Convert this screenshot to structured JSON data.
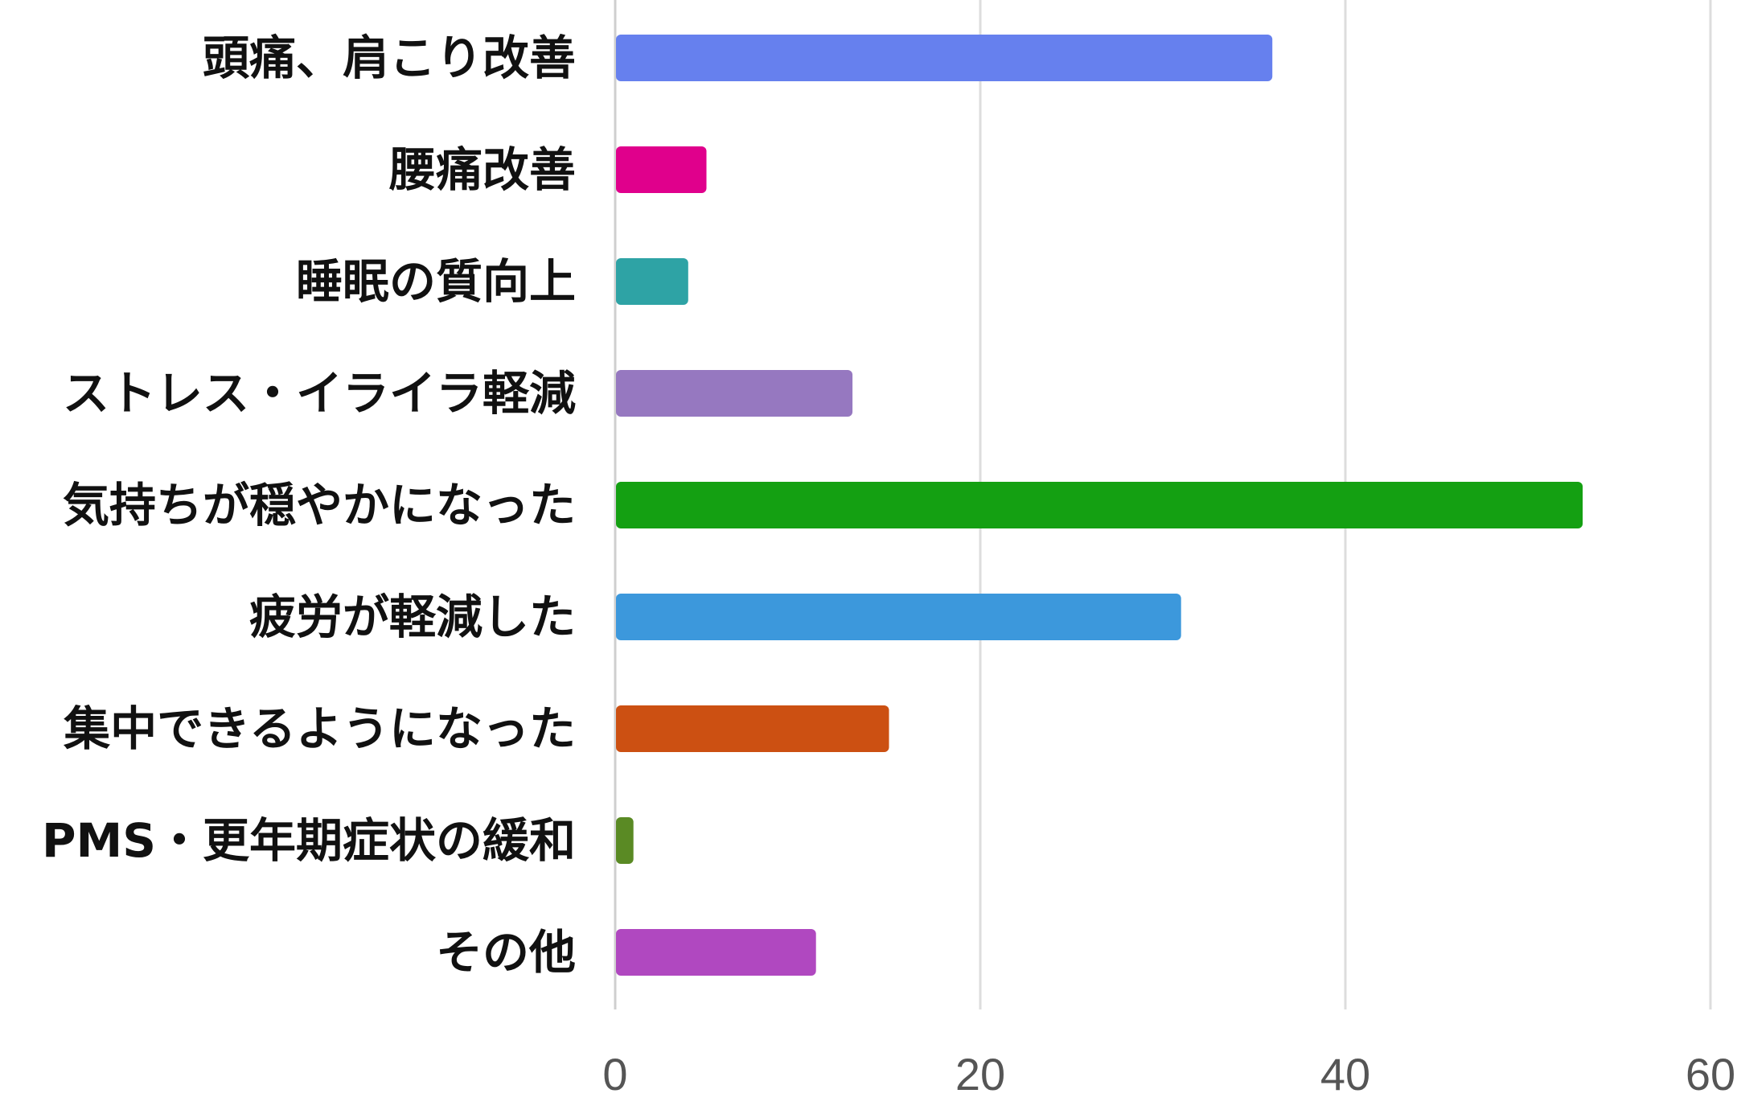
{
  "chart_data": {
    "type": "bar",
    "orientation": "horizontal",
    "title": "",
    "xlabel": "",
    "ylabel": "",
    "categories": [
      "頭痛、肩こり改善",
      "腰痛改善",
      "睡眠の質向上",
      "ストレス・イライラ軽減",
      "気持ちが穏やかになった",
      "疲労が軽減した",
      "集中できるようになった",
      "PMS・更年期症状の緩和",
      "その他"
    ],
    "values": [
      36,
      5,
      4,
      13,
      53,
      31,
      15,
      1,
      11
    ],
    "colors": [
      "#6680ee",
      "#e0008c",
      "#2ea3a5",
      "#9678c0",
      "#14a012",
      "#3c98dc",
      "#cc5012",
      "#5a8a24",
      "#b048c0"
    ],
    "xlim": [
      0,
      60
    ],
    "xticks": [
      "0",
      "20",
      "40",
      "60"
    ],
    "grid": true,
    "legend": "none"
  }
}
